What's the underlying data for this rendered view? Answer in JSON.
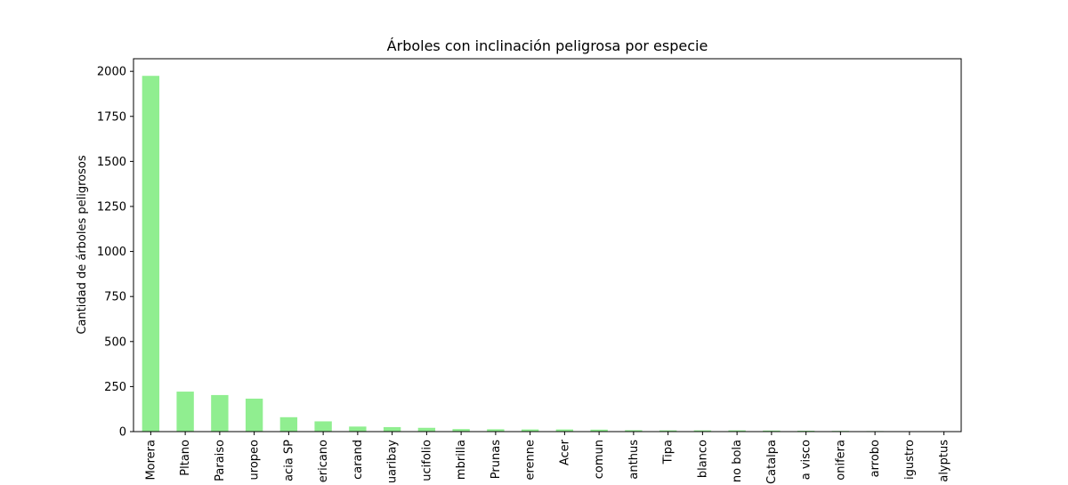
{
  "chart_data": {
    "type": "bar",
    "title": "Árboles con inclinación peligrosa por especie",
    "xlabel": "",
    "ylabel": "Cantidad de árboles peligrosos",
    "ylim": [
      0,
      2070
    ],
    "yticks": [
      0,
      250,
      500,
      750,
      1000,
      1250,
      1500,
      1750,
      2000
    ],
    "bar_color": "#90ee90",
    "grid": false,
    "legend": "none",
    "categories": [
      "Morera",
      "Pltano",
      "Paraiso",
      "uropeo",
      "acia SP",
      "ericano",
      "carand",
      "uaribay",
      "ucifolio",
      "mbrilla",
      "Prunas",
      "erenne",
      "Acer",
      "comun",
      "anthus",
      "Tipa",
      "blanco",
      "no bola",
      "Catalpa",
      "a visco",
      "onifera",
      "arrobo",
      "igustro",
      "alyptus"
    ],
    "values": [
      1975,
      222,
      203,
      183,
      80,
      57,
      28,
      25,
      21,
      14,
      13,
      12,
      12,
      11,
      8,
      7,
      7,
      7,
      6,
      5,
      4,
      3,
      2,
      2
    ]
  }
}
